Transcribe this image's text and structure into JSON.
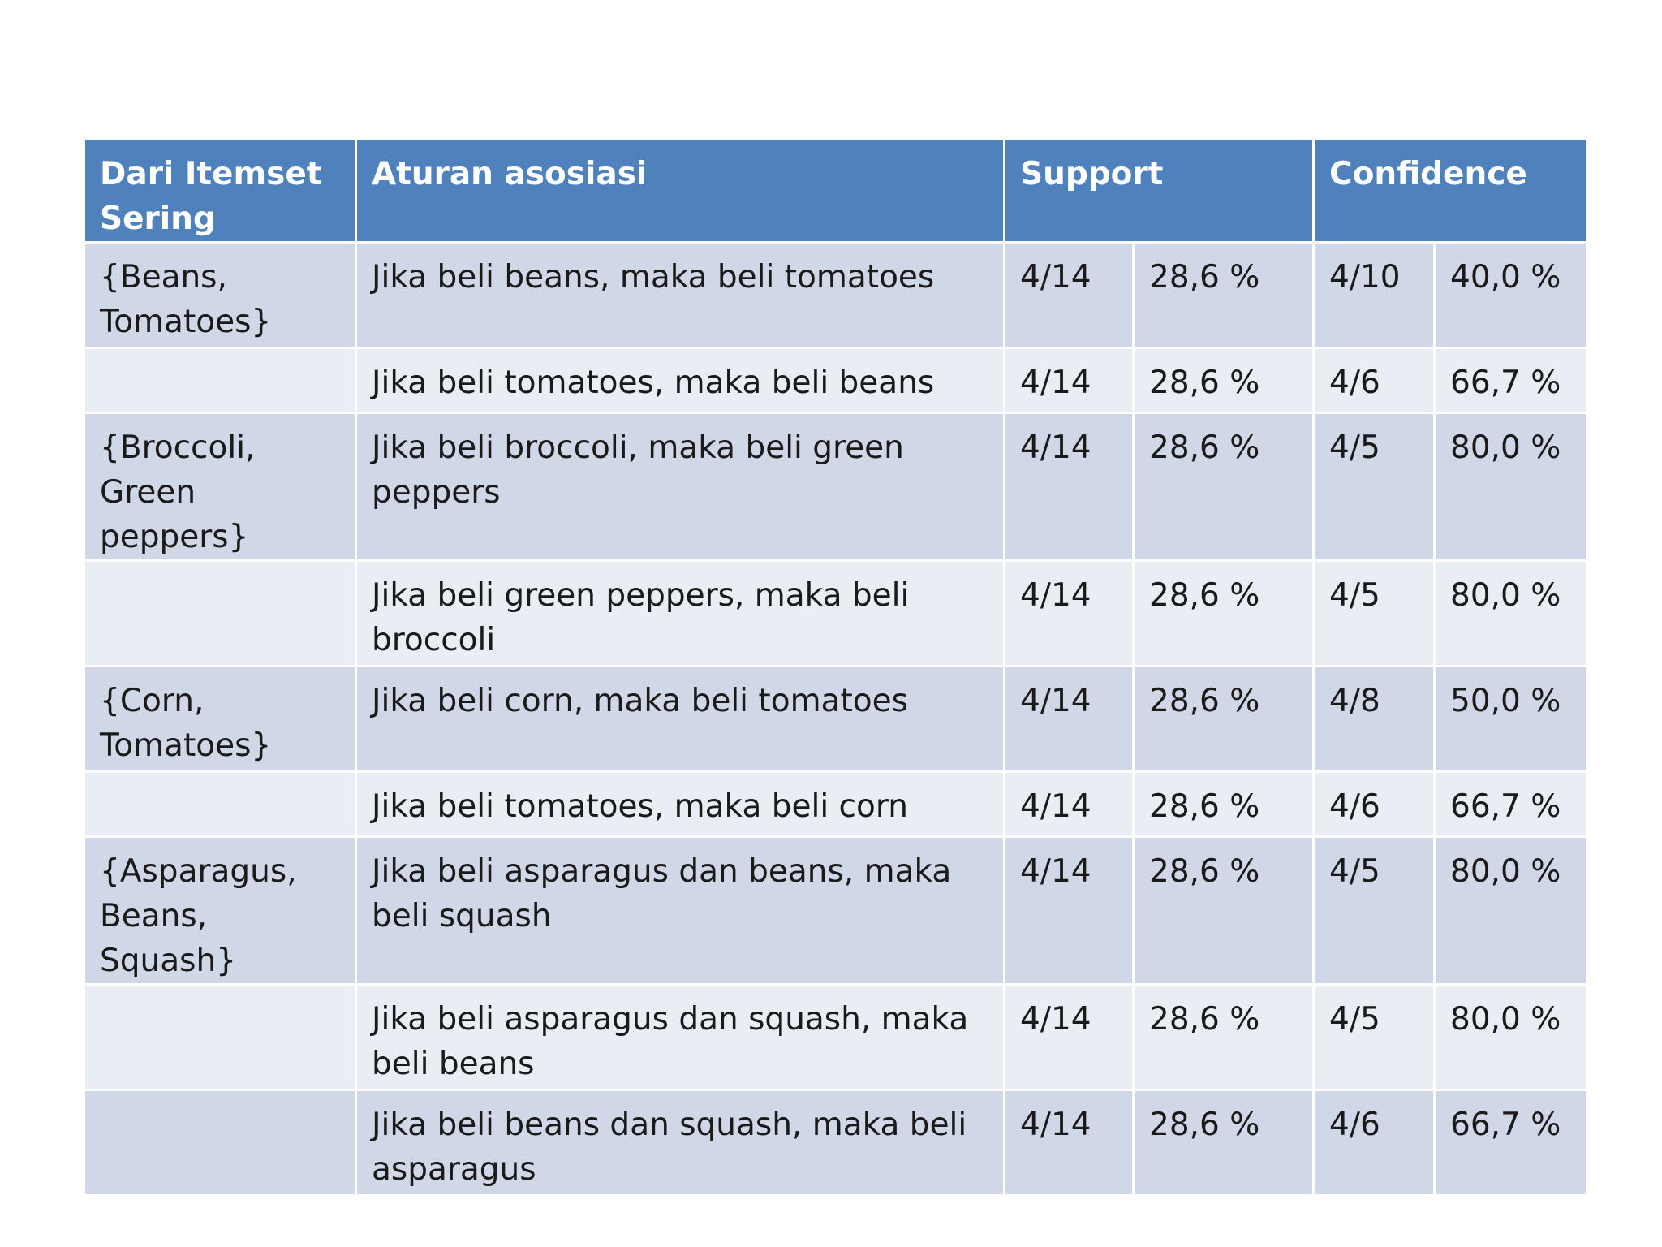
{
  "table": {
    "headers": {
      "itemset": "Dari Itemset Sering",
      "rule": "Aturan asosiasi",
      "support": "Support",
      "confidence": "Confidence"
    },
    "rows": [
      {
        "itemset": "{Beans, Tomatoes}",
        "rule": "Jika beli beans, maka beli tomatoes",
        "support_frac": "4/14",
        "support_pct": "28,6 %",
        "conf_frac": "4/10",
        "conf_pct": "40,0 %"
      },
      {
        "itemset": "",
        "rule": "Jika beli tomatoes, maka beli beans",
        "support_frac": "4/14",
        "support_pct": "28,6 %",
        "conf_frac": "4/6",
        "conf_pct": "66,7 %"
      },
      {
        "itemset": "{Broccoli, Green peppers}",
        "rule": "Jika beli broccoli, maka beli green peppers",
        "support_frac": "4/14",
        "support_pct": "28,6 %",
        "conf_frac": "4/5",
        "conf_pct": "80,0 %"
      },
      {
        "itemset": "",
        "rule": "Jika beli green peppers, maka beli broccoli",
        "support_frac": "4/14",
        "support_pct": "28,6 %",
        "conf_frac": "4/5",
        "conf_pct": "80,0 %"
      },
      {
        "itemset": "{Corn, Tomatoes}",
        "rule": "Jika beli corn, maka beli tomatoes",
        "support_frac": "4/14",
        "support_pct": "28,6 %",
        "conf_frac": "4/8",
        "conf_pct": "50,0 %"
      },
      {
        "itemset": "",
        "rule": "Jika beli tomatoes, maka beli corn",
        "support_frac": "4/14",
        "support_pct": "28,6 %",
        "conf_frac": "4/6",
        "conf_pct": "66,7 %"
      },
      {
        "itemset": "{Asparagus, Beans, Squash}",
        "rule": "Jika beli asparagus dan beans, maka beli squash",
        "support_frac": "4/14",
        "support_pct": "28,6 %",
        "conf_frac": "4/5",
        "conf_pct": "80,0 %"
      },
      {
        "itemset": "",
        "rule": "Jika beli asparagus dan squash, maka beli beans",
        "support_frac": "4/14",
        "support_pct": "28,6 %",
        "conf_frac": "4/5",
        "conf_pct": "80,0 %"
      },
      {
        "itemset": "",
        "rule": "Jika beli beans dan squash, maka beli asparagus",
        "support_frac": "4/14",
        "support_pct": "28,6 %",
        "conf_frac": "4/6",
        "conf_pct": "66,7 %"
      }
    ]
  }
}
